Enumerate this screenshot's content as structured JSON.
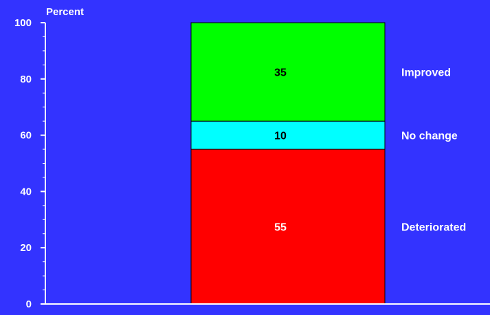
{
  "chart_data": {
    "type": "bar",
    "stacked": true,
    "ylabel": "Percent",
    "ylim": [
      0,
      100
    ],
    "yticks": [
      0,
      20,
      40,
      60,
      80,
      100
    ],
    "minor_tick_step": 5,
    "grid": false,
    "background_color": "#3333ff",
    "categories": [
      ""
    ],
    "series": [
      {
        "name": "Deteriorated",
        "values": [
          55
        ],
        "color": "#ff0000",
        "label_color": "#ffffff"
      },
      {
        "name": "No change",
        "values": [
          10
        ],
        "color": "#00ffff",
        "label_color": "#000000"
      },
      {
        "name": "Improved",
        "values": [
          35
        ],
        "color": "#00ff00",
        "label_color": "#000000"
      }
    ]
  }
}
